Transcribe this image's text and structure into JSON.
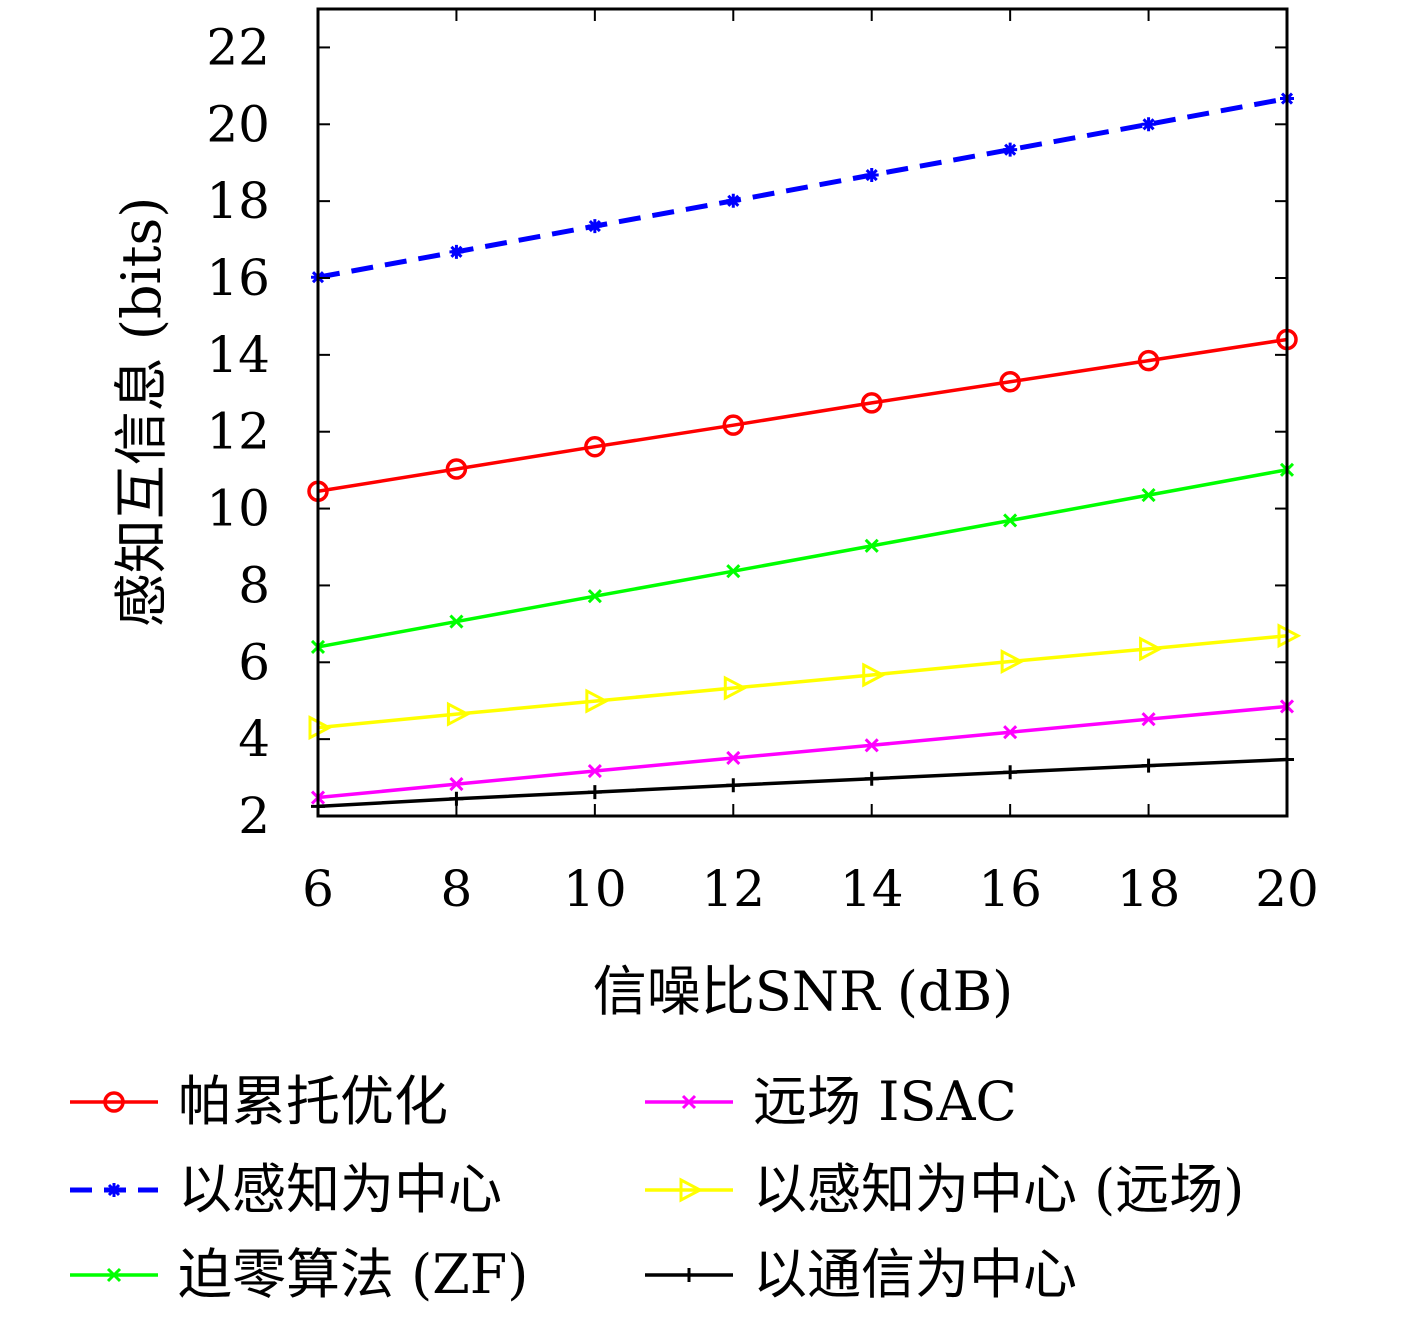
{
  "chart_data": {
    "type": "line",
    "title": "",
    "xlabel": "信噪比SNR (dB)",
    "ylabel": "感知互信息 (bits)",
    "x": [
      6,
      8,
      10,
      12,
      14,
      16,
      18,
      20
    ],
    "xlim": [
      6,
      20
    ],
    "ylim": [
      2,
      23
    ],
    "xticks": [
      "6",
      "8",
      "10",
      "12",
      "14",
      "16",
      "18",
      "20"
    ],
    "yticks": [
      "2",
      "4",
      "6",
      "8",
      "10",
      "12",
      "14",
      "16",
      "18",
      "20",
      "22"
    ],
    "grid": false,
    "legend_position": "bottom",
    "series": [
      {
        "name": "帕累托优化",
        "color": "#ff0000",
        "marker": "circle",
        "dash": "solid",
        "values": [
          10.45,
          11.03,
          11.61,
          12.17,
          12.75,
          13.3,
          13.85,
          14.4
        ]
      },
      {
        "name": "以感知为中心",
        "color": "#0000ff",
        "marker": "asterisk",
        "dash": "dashed",
        "values": [
          16.02,
          16.68,
          17.35,
          18.01,
          18.68,
          19.34,
          20.0,
          20.67
        ]
      },
      {
        "name": "迫零算法 (ZF)",
        "color": "#00ff00",
        "marker": "x",
        "dash": "solid",
        "values": [
          6.4,
          7.06,
          7.72,
          8.37,
          9.03,
          9.69,
          10.35,
          11.01
        ]
      },
      {
        "name": "远场 ISAC",
        "color": "#ff00ff",
        "marker": "x",
        "dash": "solid",
        "values": [
          2.48,
          2.83,
          3.17,
          3.51,
          3.84,
          4.18,
          4.52,
          4.85
        ]
      },
      {
        "name": "以感知为中心 (远场)",
        "color": "#ffff00",
        "marker": "triangle-right",
        "dash": "solid",
        "values": [
          4.3,
          4.65,
          4.99,
          5.33,
          5.67,
          6.02,
          6.35,
          6.69
        ]
      },
      {
        "name": "以通信为中心",
        "color": "#000000",
        "marker": "plus",
        "dash": "solid",
        "values": [
          2.25,
          2.45,
          2.62,
          2.8,
          2.97,
          3.14,
          3.31,
          3.47
        ]
      }
    ]
  }
}
